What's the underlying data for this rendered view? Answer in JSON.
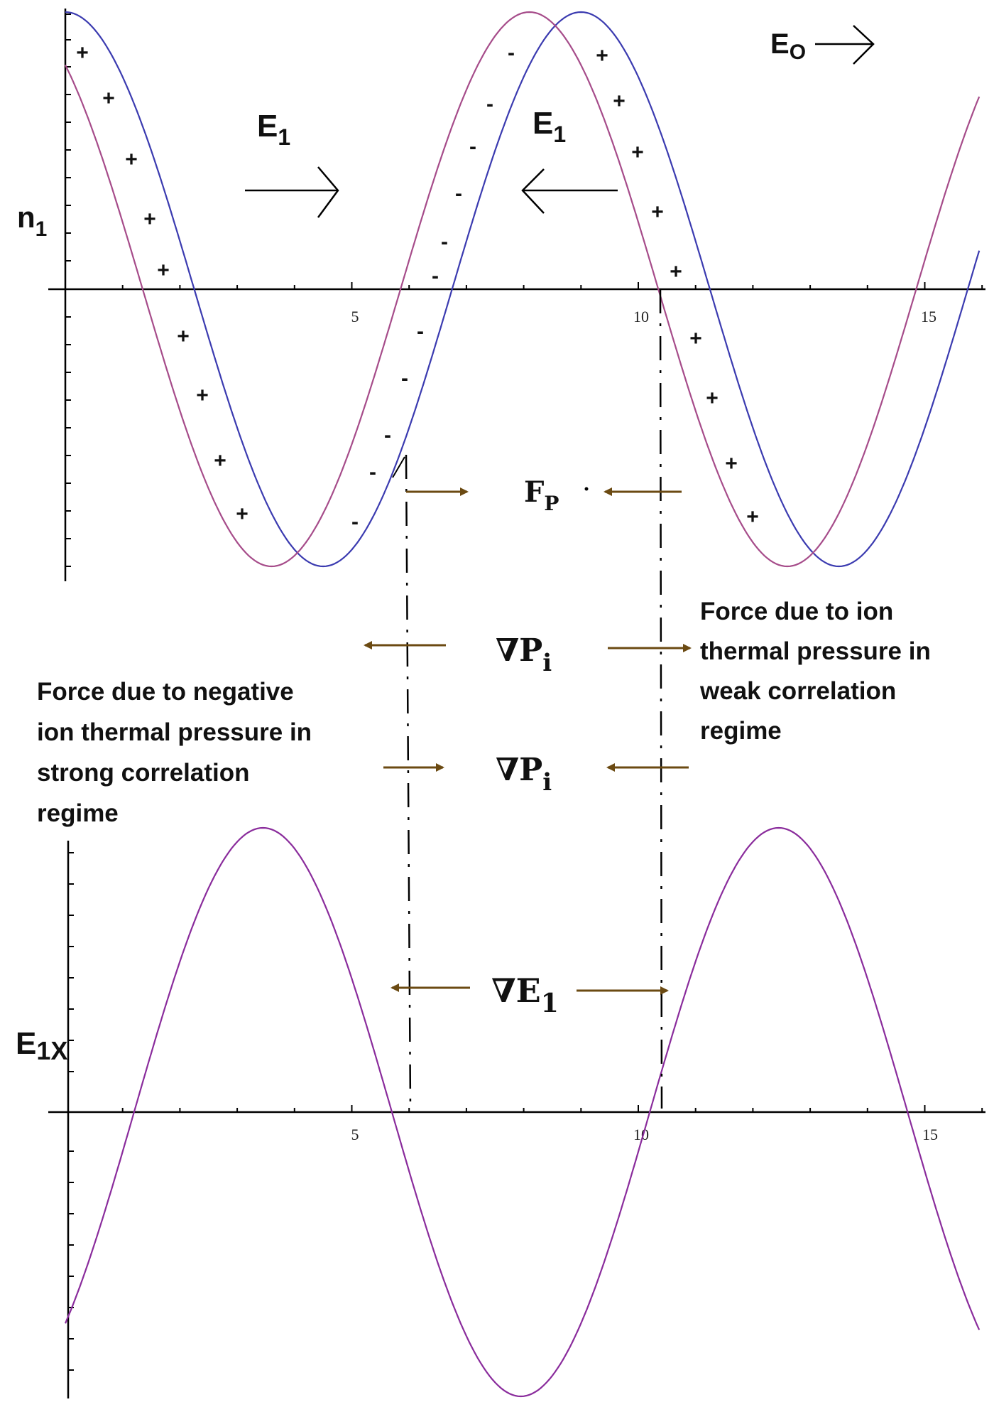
{
  "labels": {
    "n_axis": {
      "base": "n",
      "sub": "1"
    },
    "e_axis": {
      "base": "E",
      "sub": "1X"
    },
    "e0": {
      "base": "E",
      "sub": "O"
    },
    "e1_left": {
      "base": "E",
      "sub": "1"
    },
    "e1_right": {
      "base": "E",
      "sub": "1"
    },
    "fp": {
      "base": "F",
      "sub": "P"
    },
    "grad_p_top": {
      "base": "∇P",
      "sub": "i"
    },
    "grad_p_bottom": {
      "base": "∇P",
      "sub": "i"
    },
    "grad_e": {
      "base": "∇E",
      "sub": "1"
    }
  },
  "annotations": {
    "weak_note": [
      "Force due to ion",
      "thermal pressure in",
      "weak correlation",
      "regime"
    ],
    "strong_note": [
      "Force due to negative",
      "ion thermal pressure in",
      "strong correlation",
      "regime"
    ]
  },
  "signs": {
    "plus": "+",
    "minus": "-"
  },
  "colors": {
    "blue_curve": "#3b3bb0",
    "magenta_curve": "#a64c8a",
    "field_curve": "#8a2c9c",
    "force_arrow": "#6b4a12",
    "axis": "#000000"
  },
  "chart_data": [
    {
      "type": "line",
      "ylabel": "n₁",
      "x_ticks": [
        "5",
        "10",
        "15"
      ],
      "xlim": [
        0,
        16
      ],
      "series": [
        {
          "shape": "cosine",
          "amplitude": 1,
          "period": 9,
          "peak_x": [
            0,
            9
          ]
        },
        {
          "shape": "cosine",
          "amplitude": 1,
          "period": 9,
          "peak_x": [
            -0.9,
            8.1
          ]
        }
      ]
    },
    {
      "type": "line",
      "ylabel": "E1X",
      "x_ticks": [
        "5",
        "10",
        "15"
      ],
      "xlim": [
        0,
        16
      ],
      "series": [
        {
          "shape": "sine",
          "amplitude": 1,
          "period": 9,
          "zero_crossings": [
            1.2,
            5.8,
            10.3,
            14.8
          ],
          "peak_x": [
            3.5,
            12.5
          ],
          "trough_x": [
            8.1
          ]
        }
      ]
    }
  ]
}
